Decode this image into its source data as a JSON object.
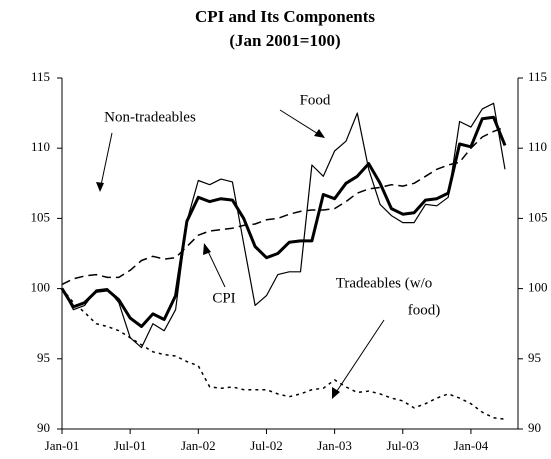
{
  "chart_data": {
    "type": "line",
    "title": "CPI and Its Components",
    "subtitle": "(Jan 2001=100)",
    "categories": [
      "Jan-01",
      null,
      null,
      null,
      null,
      null,
      "Jul-01",
      null,
      null,
      null,
      null,
      null,
      "Jan-02",
      null,
      null,
      null,
      null,
      null,
      "Jul-02",
      null,
      null,
      null,
      null,
      null,
      "Jan-03",
      null,
      null,
      null,
      null,
      null,
      "Jul-03",
      null,
      null,
      null,
      null,
      null,
      "Jan-04",
      null,
      null,
      null
    ],
    "series": [
      {
        "name": "CPI",
        "color": "#000000",
        "width": 3,
        "dash": "none",
        "values": [
          100,
          98.7,
          99.0,
          99.8,
          99.9,
          99.2,
          97.9,
          97.3,
          98.2,
          97.8,
          99.5,
          104.8,
          106.5,
          106.2,
          106.4,
          106.3,
          105.0,
          103.0,
          102.2,
          102.5,
          103.3,
          103.4,
          103.4,
          106.7,
          106.4,
          107.5,
          108.0,
          108.9,
          107.5,
          105.7,
          105.3,
          105.4,
          106.3,
          106.4,
          106.8,
          110.3,
          110.1,
          112.1,
          112.2,
          110.2
        ]
      },
      {
        "name": "Food",
        "color": "#000000",
        "width": 1.2,
        "dash": "none",
        "values": [
          100,
          98.5,
          98.8,
          99.9,
          100.0,
          99.0,
          96.5,
          95.8,
          97.5,
          97.0,
          98.5,
          104.8,
          107.7,
          107.4,
          107.8,
          107.6,
          103.2,
          98.8,
          99.5,
          101.0,
          101.2,
          101.2,
          108.8,
          108.0,
          109.8,
          110.5,
          112.5,
          108.5,
          106.0,
          105.2,
          104.7,
          104.7,
          106.0,
          105.9,
          106.5,
          111.9,
          111.5,
          112.8,
          113.2,
          108.5
        ]
      },
      {
        "name": "Non-tradeables",
        "color": "#000000",
        "width": 1.5,
        "dash": "9 5",
        "values": [
          100.3,
          100.7,
          100.9,
          101.0,
          100.8,
          100.8,
          101.3,
          102.0,
          102.3,
          102.1,
          102.2,
          103.0,
          103.8,
          104.1,
          104.2,
          104.3,
          104.5,
          104.6,
          104.9,
          105.0,
          105.3,
          105.5,
          105.6,
          105.6,
          105.7,
          106.2,
          106.8,
          107.1,
          107.2,
          107.4,
          107.3,
          107.5,
          108.0,
          108.5,
          108.8,
          109.0,
          110.0,
          110.8,
          111.2,
          111.5
        ]
      },
      {
        "name": "Tradeables (w/o food)",
        "color": "#000000",
        "width": 1.5,
        "dash": "3 4",
        "values": [
          100.0,
          99.0,
          98.3,
          97.5,
          97.3,
          97.0,
          96.5,
          96.0,
          95.5,
          95.3,
          95.2,
          94.8,
          94.5,
          93.0,
          92.9,
          93.0,
          92.8,
          92.8,
          92.8,
          92.5,
          92.3,
          92.5,
          92.8,
          92.9,
          93.5,
          93.0,
          92.6,
          92.7,
          92.5,
          92.2,
          92.0,
          91.5,
          91.8,
          92.2,
          92.5,
          92.2,
          91.8,
          91.2,
          90.8,
          90.7
        ]
      }
    ],
    "annotations": [
      "Non-tradeables",
      "Food",
      "CPI",
      "Tradeables (w/o",
      "food)"
    ],
    "ylim": [
      90,
      115
    ],
    "yticks": [
      90,
      95,
      100,
      105,
      110,
      115
    ],
    "y2lim": [
      90,
      115
    ],
    "y2ticks": [
      90,
      95,
      100,
      105,
      110,
      115
    ]
  }
}
